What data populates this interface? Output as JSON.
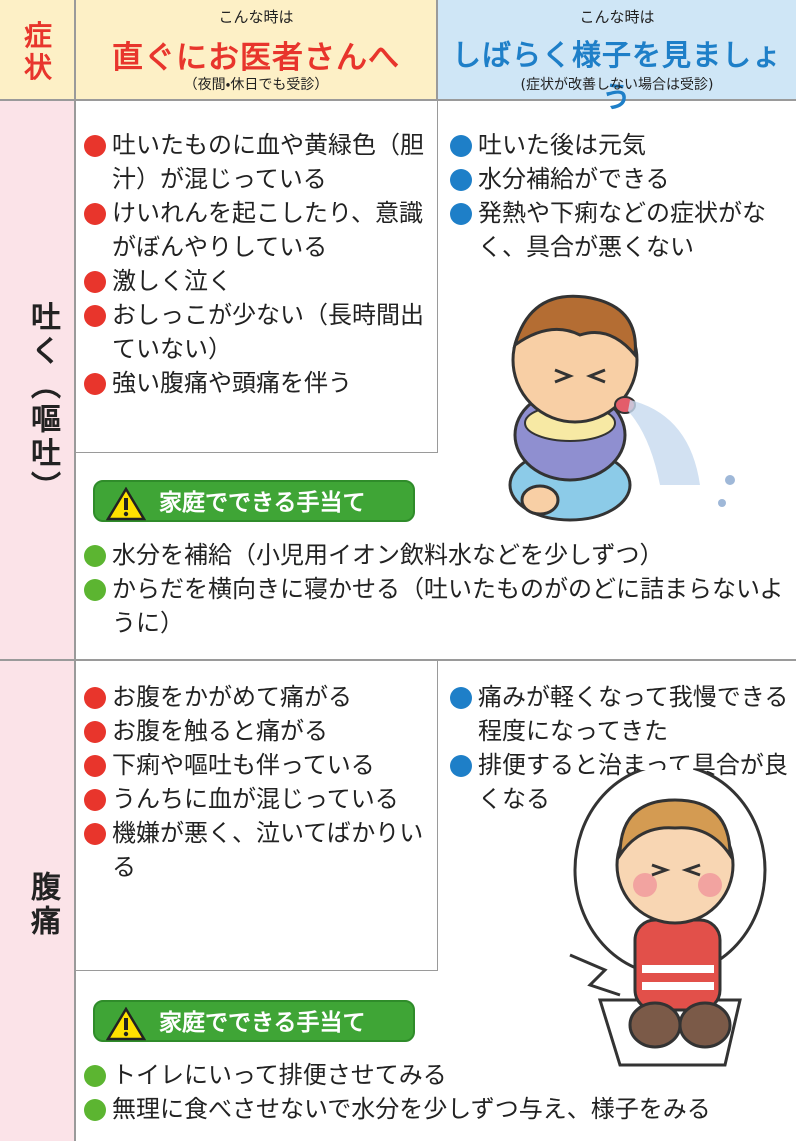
{
  "header": {
    "symptom_label": "症状",
    "columns": [
      {
        "lead": "こんな時は",
        "title": "直ぐにお医者さんへ",
        "note": "（夜間・休日でも受診）"
      },
      {
        "lead": "こんな時は",
        "title": "しばらく様子を見ましょう",
        "note": "(症状が改善しない場合は受診)"
      }
    ]
  },
  "rows": [
    {
      "symptom": "吐く（嘔吐）",
      "see_doctor": [
        "吐いたものに血や黄緑色（胆汁）が混じっている",
        "けいれんを起こしたり、意識がぼんやりしている",
        "激しく泣く",
        "おしっこが少ない（長時間出ていない）",
        "強い腹痛や頭痛を伴う"
      ],
      "watch": [
        "吐いた後は元気",
        "水分補給ができる",
        "発熱や下痢などの症状がなく、具合が悪くない"
      ],
      "home_care_title": "家庭でできる手当て",
      "home_care": [
        "水分を補給（小児用イオン飲料水などを少しずつ）",
        "からだを横向きに寝かせる（吐いたものがのどに詰まらないように）"
      ]
    },
    {
      "symptom": "腹痛",
      "see_doctor": [
        "お腹をかがめて痛がる",
        "お腹を触ると痛がる",
        "下痢や嘔吐も伴っている",
        "うんちに血が混じっている",
        "機嫌が悪く、泣いてばかりいる"
      ],
      "watch": [
        "痛みが軽くなって我慢できる程度になってきた",
        "排便すると治まって具合が良くなる"
      ],
      "home_care_title": "家庭でできる手当て",
      "home_care": [
        "トイレにいって排便させてみる",
        "無理に食べさせないで水分を少しずつ与え、様子をみる"
      ]
    }
  ]
}
